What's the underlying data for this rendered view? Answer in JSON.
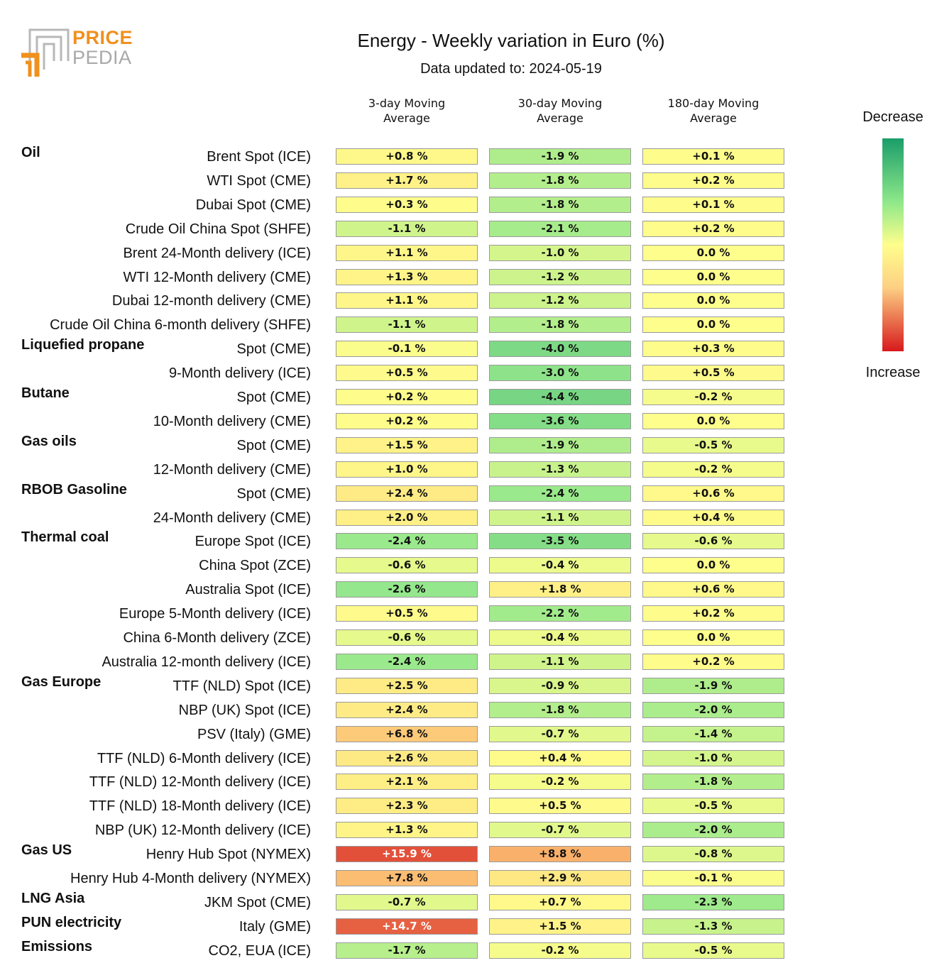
{
  "brand": {
    "line1": "PRICE",
    "line2": "PEDIA"
  },
  "title": "Energy - Weekly variation in Euro (%)",
  "subtitle": "Data updated to: 2024-05-19",
  "legend": {
    "top": "Decrease",
    "bottom": "Increase"
  },
  "colors": {
    "green": "#1a9e6a",
    "yellow": "#fefe8c",
    "red": "#d7191c"
  },
  "chart_data": {
    "type": "table",
    "title": "Energy - Weekly variation in Euro (%)",
    "columns": [
      {
        "line1": "3-day Moving",
        "line2": "Average"
      },
      {
        "line1": "30-day Moving",
        "line2": "Average"
      },
      {
        "line1": "180-day Moving",
        "line2": "Average"
      }
    ],
    "color_scale": {
      "min": -10,
      "max": 20,
      "low_label": "Decrease",
      "high_label": "Increase"
    },
    "rows": [
      {
        "group": "Oil",
        "label": "Brent Spot (ICE)",
        "values": [
          0.8,
          -1.9,
          0.1
        ],
        "texts": [
          "+0.8 %",
          "-1.9 %",
          "+0.1 %"
        ]
      },
      {
        "group": "",
        "label": "WTI Spot (CME)",
        "values": [
          1.7,
          -1.8,
          0.2
        ],
        "texts": [
          "+1.7 %",
          "-1.8 %",
          "+0.2 %"
        ]
      },
      {
        "group": "",
        "label": "Dubai Spot (CME)",
        "values": [
          0.3,
          -1.8,
          0.1
        ],
        "texts": [
          "+0.3 %",
          "-1.8 %",
          "+0.1 %"
        ]
      },
      {
        "group": "",
        "label": "Crude Oil China Spot (SHFE)",
        "values": [
          -1.1,
          -2.1,
          0.2
        ],
        "texts": [
          "-1.1 %",
          "-2.1 %",
          "+0.2 %"
        ]
      },
      {
        "group": "",
        "label": "Brent 24-Month delivery (ICE)",
        "values": [
          1.1,
          -1.0,
          0.0
        ],
        "texts": [
          "+1.1 %",
          "-1.0 %",
          "0.0 %"
        ]
      },
      {
        "group": "",
        "label": "WTI 12-Month delivery (CME)",
        "values": [
          1.3,
          -1.2,
          0.0
        ],
        "texts": [
          "+1.3 %",
          "-1.2 %",
          "0.0 %"
        ]
      },
      {
        "group": "",
        "label": "Dubai 12-month delivery (CME)",
        "values": [
          1.1,
          -1.2,
          0.0
        ],
        "texts": [
          "+1.1 %",
          "-1.2 %",
          "0.0 %"
        ]
      },
      {
        "group": "",
        "label": "Crude Oil China 6-month delivery (SHFE)",
        "values": [
          -1.1,
          -1.8,
          0.0
        ],
        "texts": [
          "-1.1 %",
          "-1.8 %",
          "0.0 %"
        ]
      },
      {
        "group": "Liquefied propane",
        "label": "Spot (CME)",
        "values": [
          -0.1,
          -4.0,
          0.3
        ],
        "texts": [
          "-0.1 %",
          "-4.0 %",
          "+0.3 %"
        ]
      },
      {
        "group": "",
        "label": "9-Month delivery (ICE)",
        "values": [
          0.5,
          -3.0,
          0.5
        ],
        "texts": [
          "+0.5 %",
          "-3.0 %",
          "+0.5 %"
        ]
      },
      {
        "group": "Butane",
        "label": "Spot (CME)",
        "values": [
          0.2,
          -4.4,
          -0.2
        ],
        "texts": [
          "+0.2 %",
          "-4.4 %",
          "-0.2 %"
        ]
      },
      {
        "group": "",
        "label": "10-Month delivery (CME)",
        "values": [
          0.2,
          -3.6,
          0.0
        ],
        "texts": [
          "+0.2 %",
          "-3.6 %",
          "0.0 %"
        ]
      },
      {
        "group": "Gas oils",
        "label": "Spot (CME)",
        "values": [
          1.5,
          -1.9,
          -0.5
        ],
        "texts": [
          "+1.5 %",
          "-1.9 %",
          "-0.5 %"
        ]
      },
      {
        "group": "",
        "label": "12-Month delivery (CME)",
        "values": [
          1.0,
          -1.3,
          -0.2
        ],
        "texts": [
          "+1.0 %",
          "-1.3 %",
          "-0.2 %"
        ]
      },
      {
        "group": "RBOB Gasoline",
        "label": "Spot (CME)",
        "values": [
          2.4,
          -2.4,
          0.6
        ],
        "texts": [
          "+2.4 %",
          "-2.4 %",
          "+0.6 %"
        ]
      },
      {
        "group": "",
        "label": "24-Month delivery (CME)",
        "values": [
          2.0,
          -1.1,
          0.4
        ],
        "texts": [
          "+2.0 %",
          "-1.1 %",
          "+0.4 %"
        ]
      },
      {
        "group": "Thermal coal",
        "label": "Europe Spot (ICE)",
        "values": [
          -2.4,
          -3.5,
          -0.6
        ],
        "texts": [
          "-2.4 %",
          "-3.5 %",
          "-0.6 %"
        ]
      },
      {
        "group": "",
        "label": "China Spot (ZCE)",
        "values": [
          -0.6,
          -0.4,
          0.0
        ],
        "texts": [
          "-0.6 %",
          "-0.4 %",
          "0.0 %"
        ]
      },
      {
        "group": "",
        "label": "Australia Spot (ICE)",
        "values": [
          -2.6,
          1.8,
          0.6
        ],
        "texts": [
          "-2.6 %",
          "+1.8 %",
          "+0.6 %"
        ]
      },
      {
        "group": "",
        "label": "Europe 5-Month delivery (ICE)",
        "values": [
          0.5,
          -2.2,
          0.2
        ],
        "texts": [
          "+0.5 %",
          "-2.2 %",
          "+0.2 %"
        ]
      },
      {
        "group": "",
        "label": "China 6-Month delivery (ZCE)",
        "values": [
          -0.6,
          -0.4,
          0.0
        ],
        "texts": [
          "-0.6 %",
          "-0.4 %",
          "0.0 %"
        ]
      },
      {
        "group": "",
        "label": "Australia 12-month delivery (ICE)",
        "values": [
          -2.4,
          -1.1,
          0.2
        ],
        "texts": [
          "-2.4 %",
          "-1.1 %",
          "+0.2 %"
        ]
      },
      {
        "group": "Gas Europe",
        "label": "TTF (NLD) Spot (ICE)",
        "values": [
          2.5,
          -0.9,
          -1.9
        ],
        "texts": [
          "+2.5 %",
          "-0.9 %",
          "-1.9 %"
        ]
      },
      {
        "group": "",
        "label": "NBP (UK) Spot (ICE)",
        "values": [
          2.4,
          -1.8,
          -2.0
        ],
        "texts": [
          "+2.4 %",
          "-1.8 %",
          "-2.0 %"
        ]
      },
      {
        "group": "",
        "label": "PSV (Italy) (GME)",
        "values": [
          6.8,
          -0.7,
          -1.4
        ],
        "texts": [
          "+6.8 %",
          "-0.7 %",
          "-1.4 %"
        ]
      },
      {
        "group": "",
        "label": "TTF (NLD) 6-Month delivery (ICE)",
        "values": [
          2.6,
          0.4,
          -1.0
        ],
        "texts": [
          "+2.6 %",
          "+0.4 %",
          "-1.0 %"
        ]
      },
      {
        "group": "",
        "label": "TTF (NLD) 12-Month delivery (ICE)",
        "values": [
          2.1,
          -0.2,
          -1.8
        ],
        "texts": [
          "+2.1 %",
          "-0.2 %",
          "-1.8 %"
        ]
      },
      {
        "group": "",
        "label": "TTF (NLD) 18-Month delivery (ICE)",
        "values": [
          2.3,
          0.5,
          -0.5
        ],
        "texts": [
          "+2.3 %",
          "+0.5 %",
          "-0.5 %"
        ]
      },
      {
        "group": "",
        "label": "NBP (UK) 12-Month delivery (ICE)",
        "values": [
          1.3,
          -0.7,
          -2.0
        ],
        "texts": [
          "+1.3 %",
          "-0.7 %",
          "-2.0 %"
        ]
      },
      {
        "group": "Gas US",
        "label": "Henry Hub Spot (NYMEX)",
        "values": [
          15.9,
          8.8,
          -0.8
        ],
        "texts": [
          "+15.9 %",
          "+8.8 %",
          "-0.8 %"
        ]
      },
      {
        "group": "",
        "label": "Henry Hub 4-Month delivery (NYMEX)",
        "values": [
          7.8,
          2.9,
          -0.1
        ],
        "texts": [
          "+7.8 %",
          "+2.9 %",
          "-0.1 %"
        ]
      },
      {
        "group": "LNG Asia",
        "label": "JKM Spot (CME)",
        "values": [
          -0.7,
          0.7,
          -2.3
        ],
        "texts": [
          "-0.7 %",
          "+0.7 %",
          "-2.3 %"
        ]
      },
      {
        "group": "PUN electricity",
        "label": "Italy (GME)",
        "values": [
          14.7,
          1.5,
          -1.3
        ],
        "texts": [
          "+14.7 %",
          "+1.5 %",
          "-1.3 %"
        ]
      },
      {
        "group": "Emissions",
        "label": "CO2, EUA (ICE)",
        "values": [
          -1.7,
          -0.2,
          -0.5
        ],
        "texts": [
          "-1.7 %",
          "-0.2 %",
          "-0.5 %"
        ]
      }
    ]
  }
}
